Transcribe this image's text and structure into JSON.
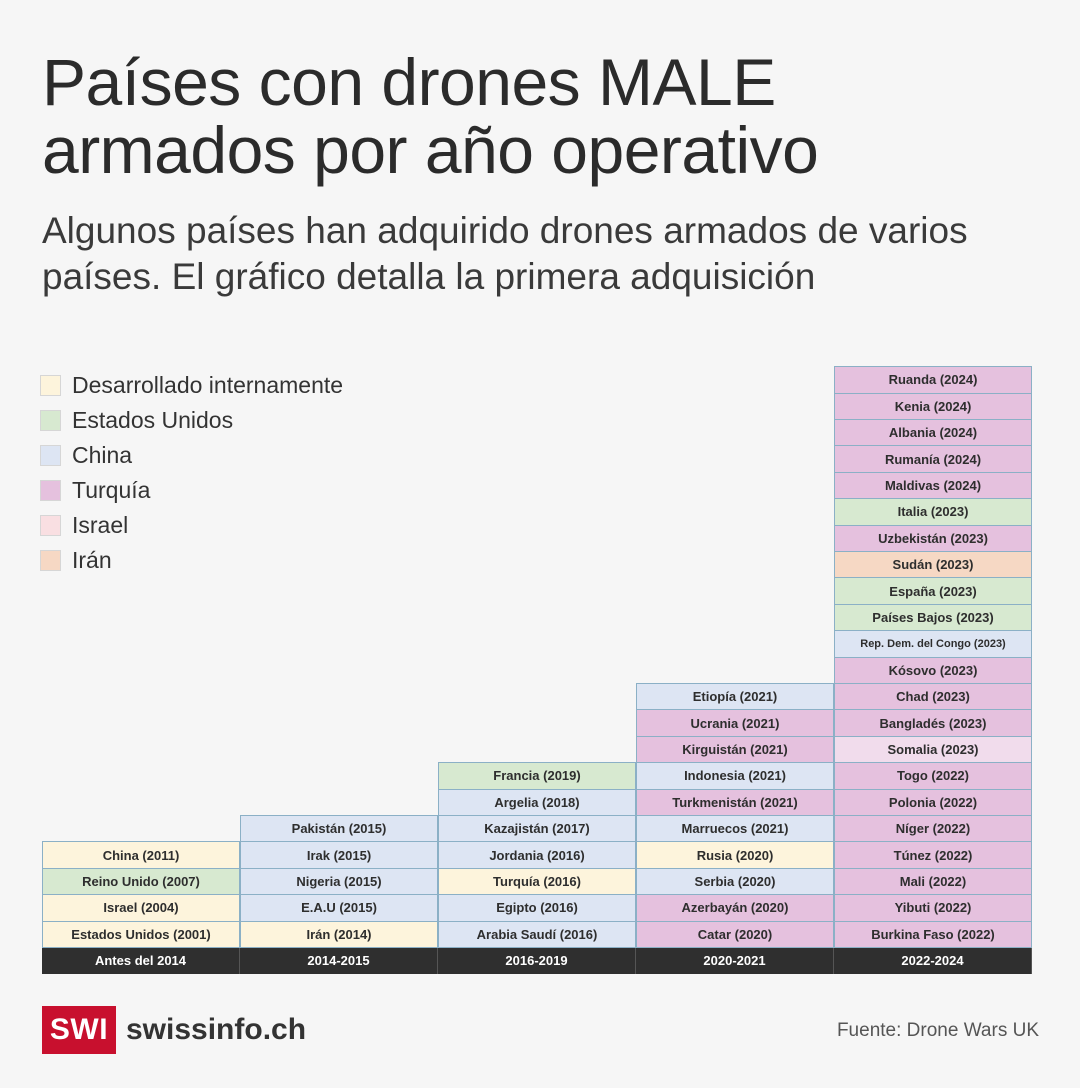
{
  "title": "Países con drones MALE armados por año operativo",
  "subtitle": "Algunos países han adquirido drones armados de varios países. El gráfico detalla la primera adquisición",
  "legend": [
    {
      "label": "Desarrollado internamente",
      "key": "internal"
    },
    {
      "label": "Estados Unidos",
      "key": "usa"
    },
    {
      "label": "China",
      "key": "china"
    },
    {
      "label": "Turquía",
      "key": "turkey"
    },
    {
      "label": "Israel",
      "key": "israel"
    },
    {
      "label": "Irán",
      "key": "iran"
    }
  ],
  "colors": {
    "internal": "#fdf4dc",
    "usa": "#d7e9d0",
    "china": "#dde5f3",
    "turkey": "#e5c1de",
    "turkey_light": "#f1dcec",
    "israel": "#f9dfe2",
    "iran": "#f6d8c4"
  },
  "chart_data": {
    "type": "table",
    "categories": [
      "Antes del 2014",
      "2014-2015",
      "2016-2019",
      "2020-2021",
      "2022-2024"
    ],
    "columns": [
      [
        {
          "label": "Estados Unidos (2001)",
          "supplier": "internal"
        },
        {
          "label": "Israel (2004)",
          "supplier": "internal"
        },
        {
          "label": "Reino Unido (2007)",
          "supplier": "usa"
        },
        {
          "label": "China (2011)",
          "supplier": "internal"
        }
      ],
      [
        {
          "label": "Irán (2014)",
          "supplier": "internal"
        },
        {
          "label": "E.A.U (2015)",
          "supplier": "china"
        },
        {
          "label": "Nigeria (2015)",
          "supplier": "china"
        },
        {
          "label": "Irak (2015)",
          "supplier": "china"
        },
        {
          "label": "Pakistán (2015)",
          "supplier": "china"
        }
      ],
      [
        {
          "label": "Arabia Saudí (2016)",
          "supplier": "china"
        },
        {
          "label": "Egipto (2016)",
          "supplier": "china"
        },
        {
          "label": "Turquía (2016)",
          "supplier": "internal"
        },
        {
          "label": "Jordania (2016)",
          "supplier": "china"
        },
        {
          "label": "Kazajistán (2017)",
          "supplier": "china"
        },
        {
          "label": "Argelia (2018)",
          "supplier": "china"
        },
        {
          "label": "Francia (2019)",
          "supplier": "usa"
        }
      ],
      [
        {
          "label": "Catar (2020)",
          "supplier": "turkey"
        },
        {
          "label": "Azerbayán (2020)",
          "supplier": "turkey"
        },
        {
          "label": "Serbia (2020)",
          "supplier": "china"
        },
        {
          "label": "Rusia (2020)",
          "supplier": "internal"
        },
        {
          "label": "Marruecos (2021)",
          "supplier": "china"
        },
        {
          "label": "Turkmenistán (2021)",
          "supplier": "turkey"
        },
        {
          "label": "Indonesia (2021)",
          "supplier": "china"
        },
        {
          "label": "Kirguistán (2021)",
          "supplier": "turkey"
        },
        {
          "label": "Ucrania (2021)",
          "supplier": "turkey"
        },
        {
          "label": "Etiopía (2021)",
          "supplier": "china"
        }
      ],
      [
        {
          "label": "Burkina Faso (2022)",
          "supplier": "turkey"
        },
        {
          "label": "Yibuti (2022)",
          "supplier": "turkey"
        },
        {
          "label": "Mali (2022)",
          "supplier": "turkey"
        },
        {
          "label": "Túnez (2022)",
          "supplier": "turkey"
        },
        {
          "label": "Níger (2022)",
          "supplier": "turkey"
        },
        {
          "label": "Polonia (2022)",
          "supplier": "turkey"
        },
        {
          "label": "Togo (2022)",
          "supplier": "turkey"
        },
        {
          "label": "Somalia (2023)",
          "supplier": "turkey_light"
        },
        {
          "label": "Bangladés (2023)",
          "supplier": "turkey"
        },
        {
          "label": "Chad (2023)",
          "supplier": "turkey"
        },
        {
          "label": "Kósovo (2023)",
          "supplier": "turkey"
        },
        {
          "label": "Rep. Dem. del Congo (2023)",
          "supplier": "china"
        },
        {
          "label": "Países Bajos (2023)",
          "supplier": "usa"
        },
        {
          "label": "España (2023)",
          "supplier": "usa"
        },
        {
          "label": "Sudán (2023)",
          "supplier": "iran"
        },
        {
          "label": "Uzbekistán (2023)",
          "supplier": "turkey"
        },
        {
          "label": "Italia (2023)",
          "supplier": "usa"
        },
        {
          "label": "Maldivas (2024)",
          "supplier": "turkey"
        },
        {
          "label": "Rumanía (2024)",
          "supplier": "turkey"
        },
        {
          "label": "Albania (2024)",
          "supplier": "turkey"
        },
        {
          "label": "Kenia (2024)",
          "supplier": "turkey"
        },
        {
          "label": "Ruanda (2024)",
          "supplier": "turkey"
        }
      ]
    ]
  },
  "logo": {
    "box": "SWI",
    "text": "swissinfo.ch"
  },
  "source": "Fuente: Drone Wars UK"
}
